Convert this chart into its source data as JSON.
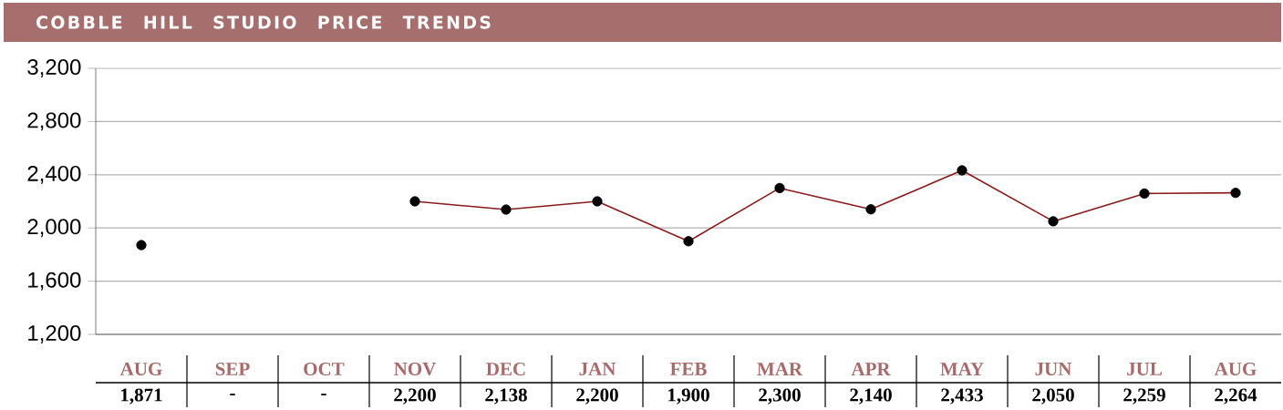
{
  "chart_data": {
    "type": "line",
    "title": "COBBLE HILL STUDIO PRICE TRENDS",
    "categories": [
      "AUG",
      "SEP",
      "OCT",
      "NOV",
      "DEC",
      "JAN",
      "FEB",
      "MAR",
      "APR",
      "MAY",
      "JUN",
      "JUL",
      "AUG"
    ],
    "values": [
      1871,
      null,
      null,
      2200,
      2138,
      2200,
      1900,
      2300,
      2140,
      2433,
      2050,
      2259,
      2264
    ],
    "value_labels": [
      "1,871",
      "-",
      "-",
      "2,200",
      "2,138",
      "2,200",
      "1,900",
      "2,300",
      "2,140",
      "2,433",
      "2,050",
      "2,259",
      "2,264"
    ],
    "color": "#8b1a1a",
    "colors": [
      "#000000",
      null,
      null,
      "#000000",
      "#000000",
      "#000000",
      "#000000",
      "#000000",
      "#000000",
      "#000000",
      "#000000",
      "#000000",
      "#000000"
    ],
    "marker": "circle",
    "line_style": "solid",
    "grid": "y",
    "ylim": [
      1200,
      3200
    ],
    "yticks": [
      {
        "value": 1200,
        "label": "1,200"
      },
      {
        "value": 1600,
        "label": "1,600"
      },
      {
        "value": 2000,
        "label": "2,000"
      },
      {
        "value": 2400,
        "label": "2,400"
      },
      {
        "value": 2800,
        "label": "2,800"
      },
      {
        "value": 3200,
        "label": "3,200"
      }
    ]
  }
}
